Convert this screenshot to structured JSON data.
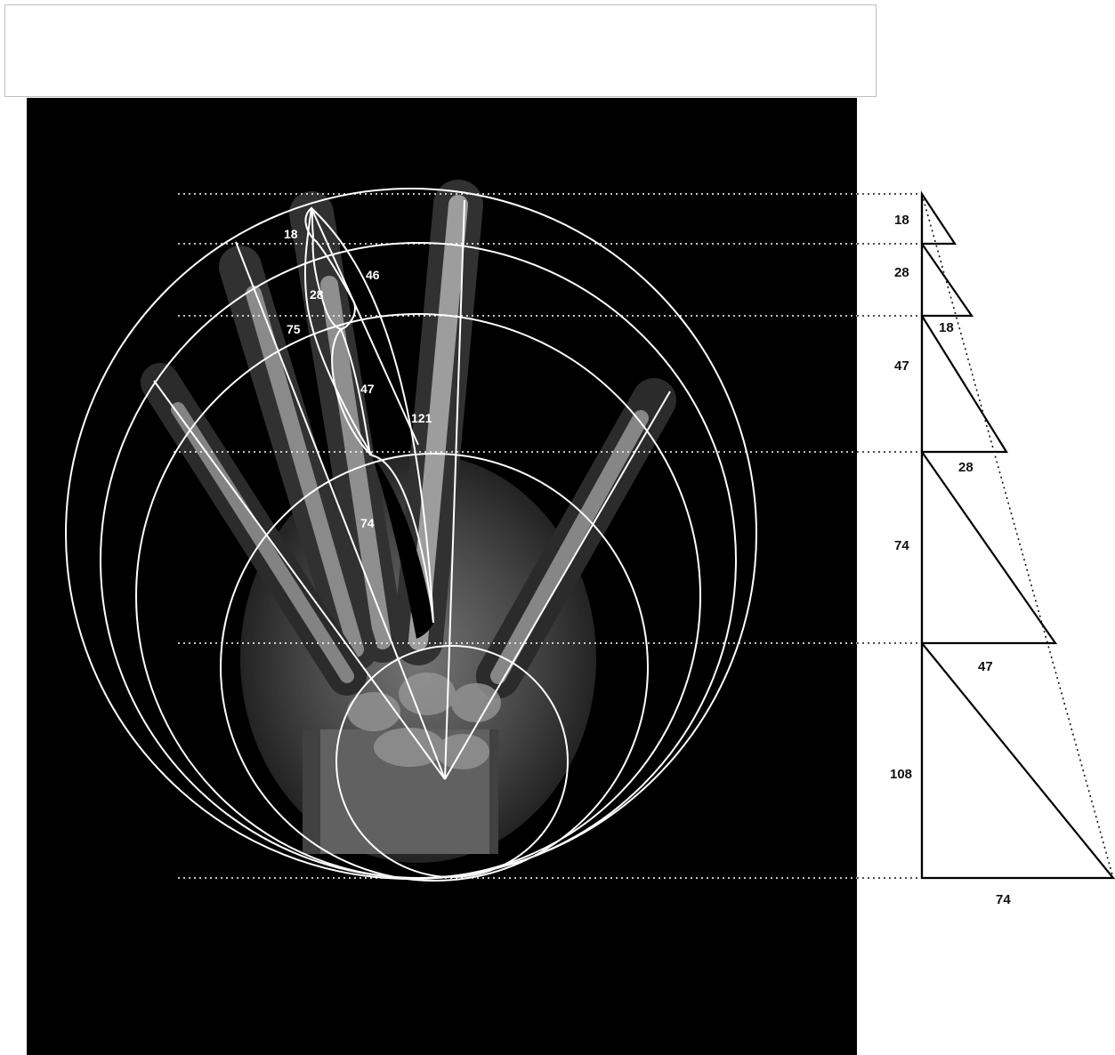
{
  "caption": "",
  "xray_labels": [
    "18",
    "46",
    "28",
    "75",
    "47",
    "121",
    "74"
  ],
  "scale_side_labels": [
    "18",
    "28",
    "47",
    "74",
    "108"
  ],
  "scale_inner_labels": [
    "18",
    "28",
    "47"
  ],
  "scale_bottom_label": "74",
  "colors": {
    "background": "#000000",
    "overlay_lines": "#ffffff",
    "scale_lines": "#000000"
  }
}
